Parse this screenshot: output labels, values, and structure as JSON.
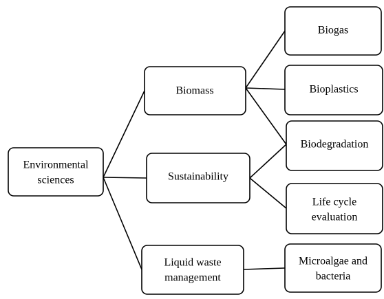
{
  "nodes": [
    {
      "lines": [
        "Environmental",
        "sciences"
      ]
    },
    {
      "lines": [
        "Biomass"
      ]
    },
    {
      "lines": [
        "Sustainability"
      ]
    },
    {
      "lines": [
        "Liquid waste",
        "management"
      ]
    },
    {
      "lines": [
        "Biogas"
      ]
    },
    {
      "lines": [
        "Bioplastics"
      ]
    },
    {
      "lines": [
        "Biodegradation"
      ]
    },
    {
      "lines": [
        "Life cycle",
        "evaluation"
      ]
    },
    {
      "lines": [
        "Microalgae and",
        "bacteria"
      ]
    }
  ]
}
